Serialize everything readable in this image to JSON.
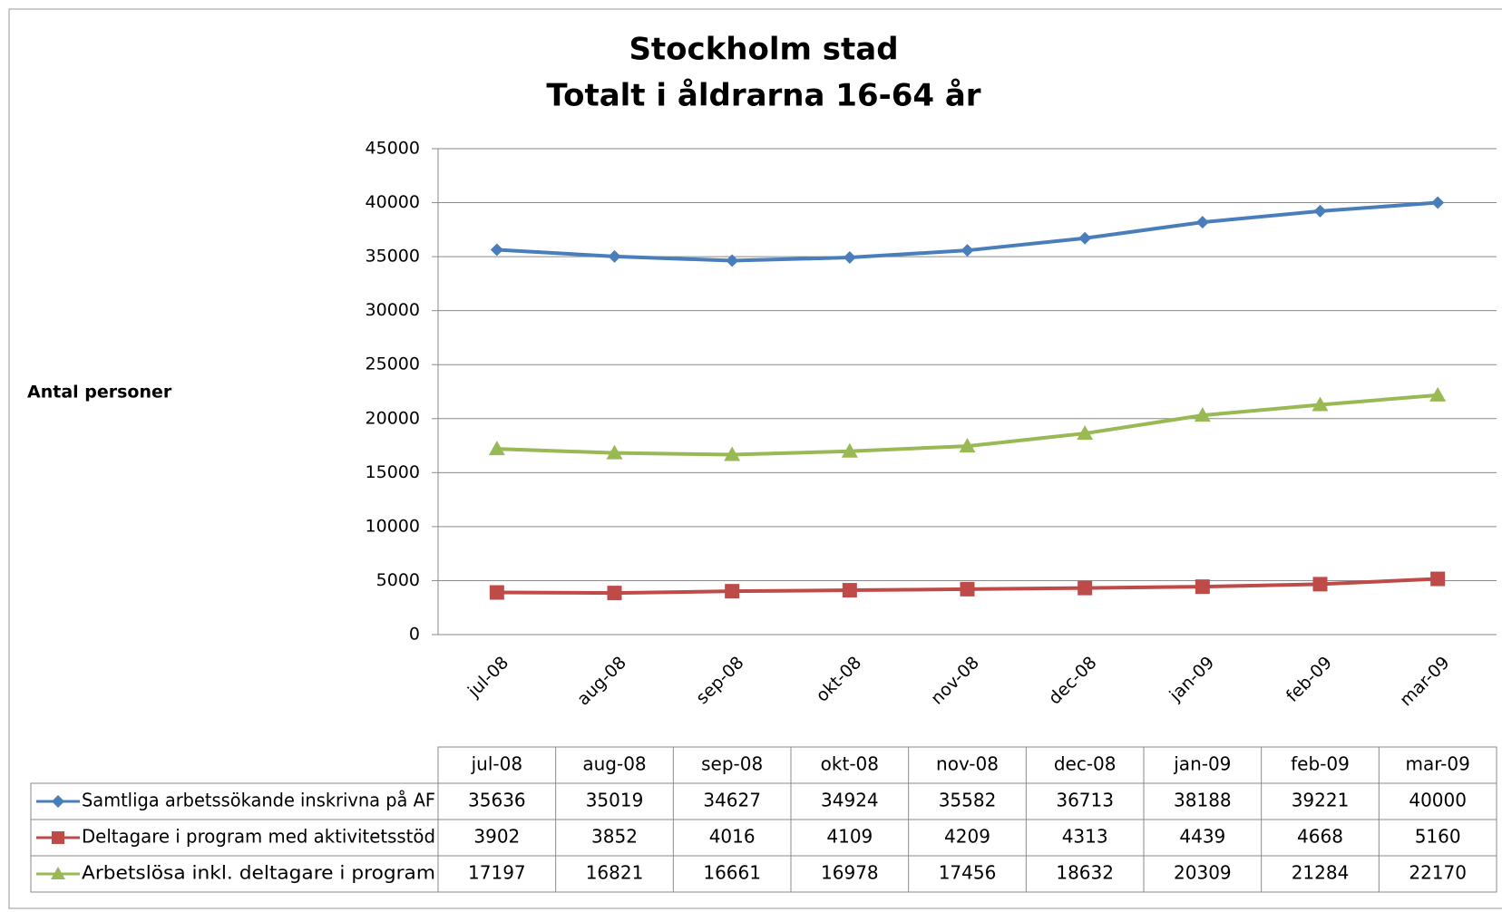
{
  "chart_data": {
    "type": "line",
    "title": "Stockholm stad",
    "subtitle": "Totalt i åldrarna 16-64 år",
    "y_label": "Antal personer",
    "categories": [
      "jul-08",
      "aug-08",
      "sep-08",
      "okt-08",
      "nov-08",
      "dec-08",
      "jan-09",
      "feb-09",
      "mar-09"
    ],
    "series": [
      {
        "name": "Samtliga arbetssökande inskrivna på AF",
        "color": "#4a7ebb",
        "marker": "diamond",
        "values": [
          35636,
          35019,
          34627,
          34924,
          35582,
          36713,
          38188,
          39221,
          40000
        ]
      },
      {
        "name": "Deltagare i program med aktivitetsstöd",
        "color": "#be4b48",
        "marker": "square",
        "values": [
          3902,
          3852,
          4016,
          4109,
          4209,
          4313,
          4439,
          4668,
          5160
        ]
      },
      {
        "name": "Arbetslösa inkl. deltagare i program",
        "color": "#98b954",
        "marker": "triangle",
        "values": [
          17197,
          16821,
          16661,
          16978,
          17456,
          18632,
          20309,
          21284,
          22170
        ]
      }
    ],
    "ylim": [
      0,
      45000
    ],
    "yticks": [
      0,
      5000,
      10000,
      15000,
      20000,
      25000,
      30000,
      35000,
      40000,
      45000
    ],
    "grid": true,
    "data_table": true
  }
}
